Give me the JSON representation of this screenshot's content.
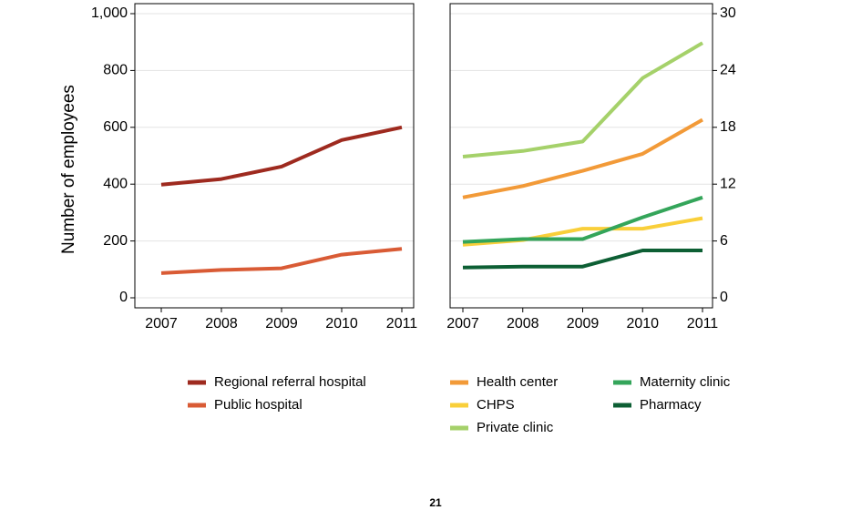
{
  "page_number": "21",
  "chart_data": [
    {
      "type": "line",
      "ylabel": "Number of employees",
      "x": [
        2007,
        2008,
        2009,
        2010,
        2011
      ],
      "x_ticks": [
        "2007",
        "2008",
        "2009",
        "2010",
        "2011"
      ],
      "ylim": [
        0,
        1000
      ],
      "y_ticks": [
        "0",
        "200",
        "400",
        "600",
        "800",
        "1,000"
      ],
      "y_axis_side": "left",
      "grid": true,
      "series": [
        {
          "name": "Regional referral hospital",
          "color": "#9e2a1f",
          "values": [
            398,
            418,
            462,
            555,
            600
          ]
        },
        {
          "name": "Public hospital",
          "color": "#d95b35",
          "values": [
            87,
            98,
            104,
            152,
            172
          ]
        }
      ]
    },
    {
      "type": "line",
      "x": [
        2007,
        2008,
        2009,
        2010,
        2011
      ],
      "x_ticks": [
        "2007",
        "2008",
        "2009",
        "2010",
        "2011"
      ],
      "ylim": [
        0,
        30
      ],
      "y_ticks": [
        "0",
        "6",
        "12",
        "18",
        "24",
        "30"
      ],
      "y_axis_side": "right",
      "grid": true,
      "series": [
        {
          "name": "Health center",
          "color": "#f29a38",
          "values": [
            10.6,
            11.8,
            13.4,
            15.2,
            18.8
          ]
        },
        {
          "name": "CHPS",
          "color": "#f9cf3a",
          "values": [
            5.6,
            6.1,
            7.3,
            7.3,
            8.4
          ]
        },
        {
          "name": "Private clinic",
          "color": "#a5d16a",
          "values": [
            14.9,
            15.5,
            16.5,
            23.2,
            26.9
          ]
        },
        {
          "name": "Maternity clinic",
          "color": "#34a55a",
          "values": [
            5.9,
            6.2,
            6.2,
            8.5,
            10.6
          ]
        },
        {
          "name": "Pharmacy",
          "color": "#0d5f34",
          "values": [
            3.2,
            3.3,
            3.3,
            5.0,
            5.0
          ]
        }
      ]
    }
  ],
  "legend": {
    "placement": "bottom",
    "columns": [
      [
        "Regional referral hospital",
        "Public hospital"
      ],
      [
        "Health center",
        "CHPS",
        "Private clinic"
      ],
      [
        "Maternity clinic",
        "Pharmacy"
      ]
    ]
  }
}
